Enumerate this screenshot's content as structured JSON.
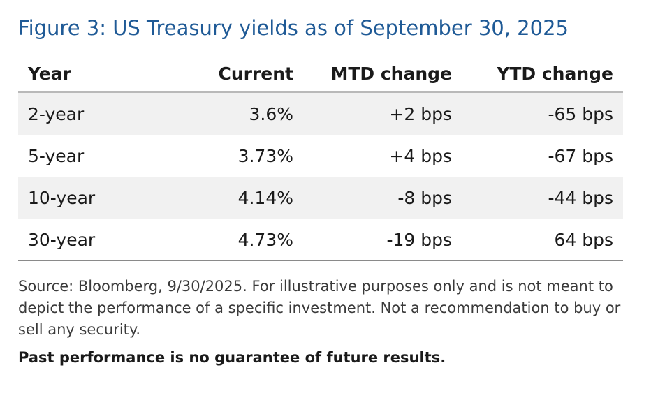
{
  "figure": {
    "title": "Figure 3: US Treasury yields as of September 30, 2025"
  },
  "table": {
    "headers": {
      "year": "Year",
      "current": "Current",
      "mtd": "MTD change",
      "ytd": "YTD change"
    },
    "rows": [
      {
        "year": "2-year",
        "current": "3.6%",
        "mtd": "+2 bps",
        "ytd": "-65 bps"
      },
      {
        "year": "5-year",
        "current": "3.73%",
        "mtd": "+4 bps",
        "ytd": "-67 bps"
      },
      {
        "year": "10-year",
        "current": "4.14%",
        "mtd": "-8 bps",
        "ytd": "-44 bps"
      },
      {
        "year": "30-year",
        "current": "4.73%",
        "mtd": "-19 bps",
        "ytd": "64 bps"
      }
    ]
  },
  "notes": {
    "source": "Source: Bloomberg, 9/30/2025. For illustrative purposes only and is not meant to depict the performance of a specific investment. Not a recommendation to buy or sell any security.",
    "disclaimer": "Past performance is no guarantee of future results."
  },
  "colors": {
    "title": "#1f5a96",
    "row_shade": "#f1f1f1",
    "header_rule": "#b9b9b9"
  }
}
